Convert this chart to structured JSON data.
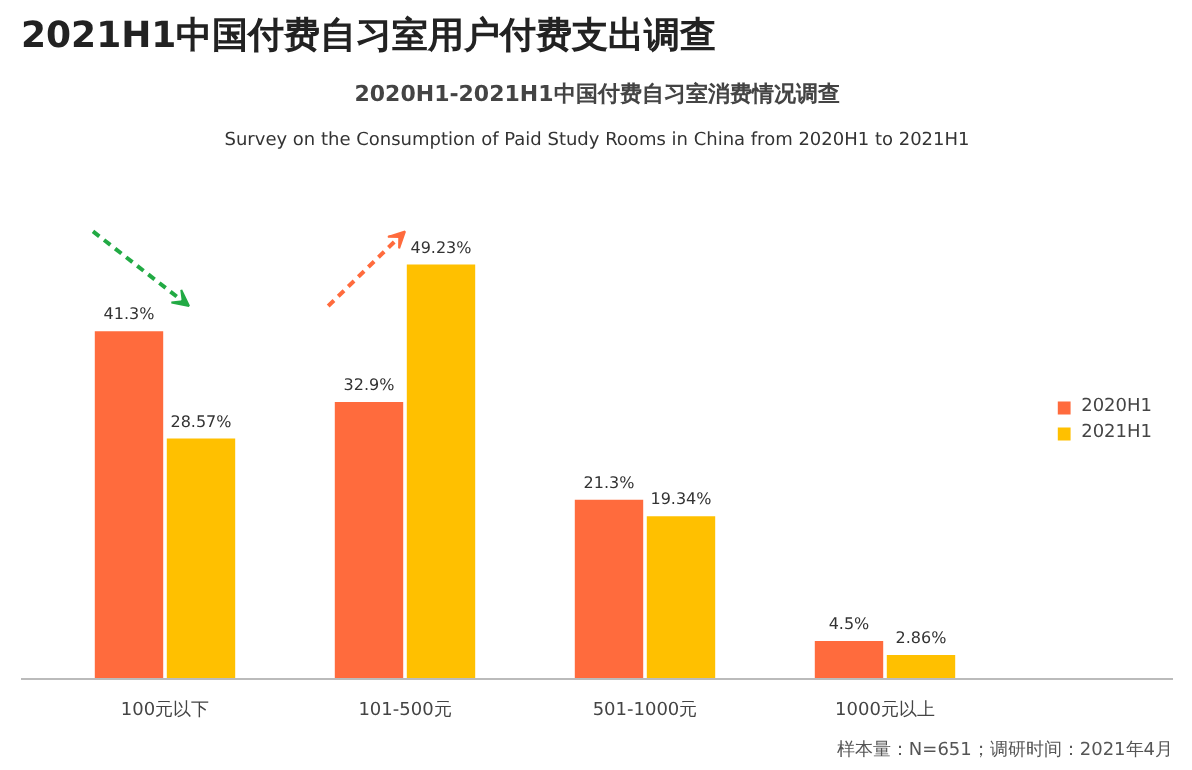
{
  "chart_data": {
    "type": "bar",
    "title": "2021H1中国付费自习室用户付费支出调查",
    "subtitle": "2020H1-2021H1中国付费自习室消费情况调查",
    "categories": [
      "100元以下",
      "101-500元",
      "501-1000元",
      "1000元以上"
    ],
    "series": [
      {
        "name": "2020H1",
        "color": "#ff6b3d",
        "values": [
          41.3,
          32.9,
          21.3,
          4.5
        ],
        "value_labels": [
          "41.3%",
          "32.9%",
          "21.3%",
          "4.5%"
        ]
      },
      {
        "name": "2021H1",
        "color": "#ffc000",
        "values": [
          28.57,
          49.23,
          19.34,
          2.86
        ],
        "value_labels": [
          "28.57%",
          "49.23%",
          "19.34%",
          "2.86%"
        ]
      }
    ],
    "legend": "right",
    "grid": false,
    "annotations": [
      "Survey on the Consumption of Paid Study Rooms in China from 2020H1 to 2021H1",
      "样本量：N=651；调研时间：2021年4月"
    ]
  }
}
